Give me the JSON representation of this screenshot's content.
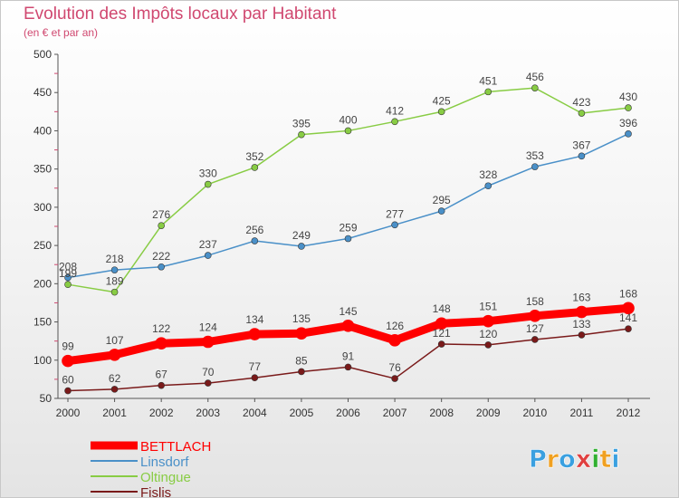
{
  "chart_data": {
    "type": "line",
    "title": "Evolution des Impôts locaux par Habitant",
    "subtitle": "(en € et par an)",
    "x": [
      "2000",
      "2001",
      "2002",
      "2003",
      "2004",
      "2005",
      "2006",
      "2007",
      "2008",
      "2009",
      "2010",
      "2011",
      "2012"
    ],
    "ylim": [
      50,
      500
    ],
    "yticks": [
      50,
      100,
      150,
      200,
      250,
      300,
      350,
      400,
      450,
      500
    ],
    "grid": false,
    "legend_position": "bottom-left",
    "series": [
      {
        "name": "BETTLACH",
        "color": "#ff0000",
        "values": [
          99,
          107,
          122,
          124,
          134,
          135,
          145,
          126,
          148,
          151,
          158,
          163,
          168
        ]
      },
      {
        "name": "Linsdorf",
        "color": "#4a90c8",
        "values": [
          208,
          218,
          222,
          237,
          256,
          249,
          259,
          277,
          295,
          328,
          353,
          367,
          396
        ]
      },
      {
        "name": "Oltingue",
        "color": "#88cc44",
        "values": [
          199,
          189,
          276,
          330,
          352,
          395,
          400,
          412,
          425,
          451,
          456,
          423,
          430
        ]
      },
      {
        "name": "Fislis",
        "color": "#7a1a1a",
        "values": [
          60,
          62,
          67,
          70,
          77,
          85,
          91,
          76,
          121,
          120,
          127,
          133,
          141
        ]
      }
    ]
  },
  "logo": {
    "letters": [
      "P",
      "r",
      "o",
      "x",
      "i",
      "t",
      "i"
    ],
    "colors": [
      "#3aa0e0",
      "#f0a020",
      "#3aa0e0",
      "#e04040",
      "#30b030",
      "#f0a020",
      "#3aa0e0"
    ]
  }
}
